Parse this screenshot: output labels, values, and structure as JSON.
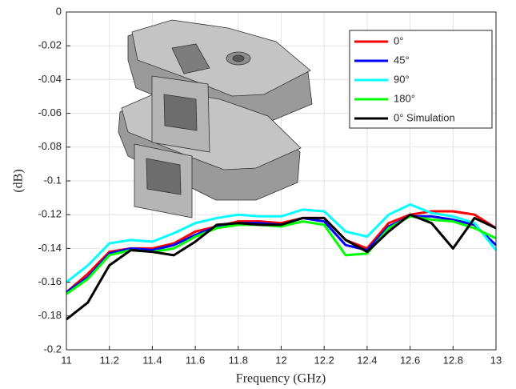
{
  "chart_data": {
    "type": "line",
    "xlabel": "Frequency (GHz)",
    "ylabel": "(dB)",
    "x": [
      11,
      11.1,
      11.2,
      11.3,
      11.4,
      11.5,
      11.6,
      11.7,
      11.8,
      11.9,
      12,
      12.1,
      12.2,
      12.3,
      12.4,
      12.5,
      12.6,
      12.7,
      12.8,
      12.9,
      13
    ],
    "series": [
      {
        "name": "0°",
        "color": "#ff0000",
        "values": [
          -0.166,
          -0.155,
          -0.142,
          -0.14,
          -0.14,
          -0.137,
          -0.13,
          -0.127,
          -0.124,
          -0.124,
          -0.125,
          -0.122,
          -0.122,
          -0.135,
          -0.14,
          -0.125,
          -0.12,
          -0.118,
          -0.118,
          -0.12,
          -0.128
        ]
      },
      {
        "name": "45°",
        "color": "#0000ff",
        "values": [
          -0.166,
          -0.157,
          -0.143,
          -0.14,
          -0.141,
          -0.138,
          -0.132,
          -0.127,
          -0.125,
          -0.125,
          -0.126,
          -0.122,
          -0.124,
          -0.138,
          -0.141,
          -0.127,
          -0.121,
          -0.121,
          -0.123,
          -0.126,
          -0.138
        ]
      },
      {
        "name": "90°",
        "color": "#00ffff",
        "values": [
          -0.16,
          -0.15,
          -0.137,
          -0.135,
          -0.136,
          -0.131,
          -0.125,
          -0.122,
          -0.12,
          -0.121,
          -0.121,
          -0.117,
          -0.118,
          -0.13,
          -0.133,
          -0.12,
          -0.114,
          -0.119,
          -0.121,
          -0.125,
          -0.141
        ]
      },
      {
        "name": "180°",
        "color": "#00ff00",
        "values": [
          -0.167,
          -0.158,
          -0.144,
          -0.141,
          -0.142,
          -0.14,
          -0.133,
          -0.128,
          -0.126,
          -0.126,
          -0.127,
          -0.124,
          -0.126,
          -0.144,
          -0.143,
          -0.128,
          -0.121,
          -0.123,
          -0.124,
          -0.128,
          -0.134
        ]
      },
      {
        "name": "0° Simulation",
        "color": "#000000",
        "values": [
          -0.182,
          -0.172,
          -0.15,
          -0.141,
          -0.142,
          -0.144,
          -0.136,
          -0.126,
          -0.125,
          -0.126,
          -0.126,
          -0.122,
          -0.122,
          -0.135,
          -0.142,
          -0.13,
          -0.12,
          -0.125,
          -0.14,
          -0.122,
          -0.128
        ]
      }
    ],
    "xlim": [
      11,
      13
    ],
    "xticks": [
      11,
      11.2,
      11.4,
      11.6,
      11.8,
      12,
      12.2,
      12.4,
      12.6,
      12.8,
      13
    ],
    "ylim": [
      -0.2,
      0
    ],
    "yticks": [
      -0.2,
      -0.18,
      -0.16,
      -0.14,
      -0.12,
      -0.1,
      -0.08,
      -0.06,
      -0.04,
      -0.02,
      0
    ],
    "grid": true,
    "legend": "upper right"
  }
}
